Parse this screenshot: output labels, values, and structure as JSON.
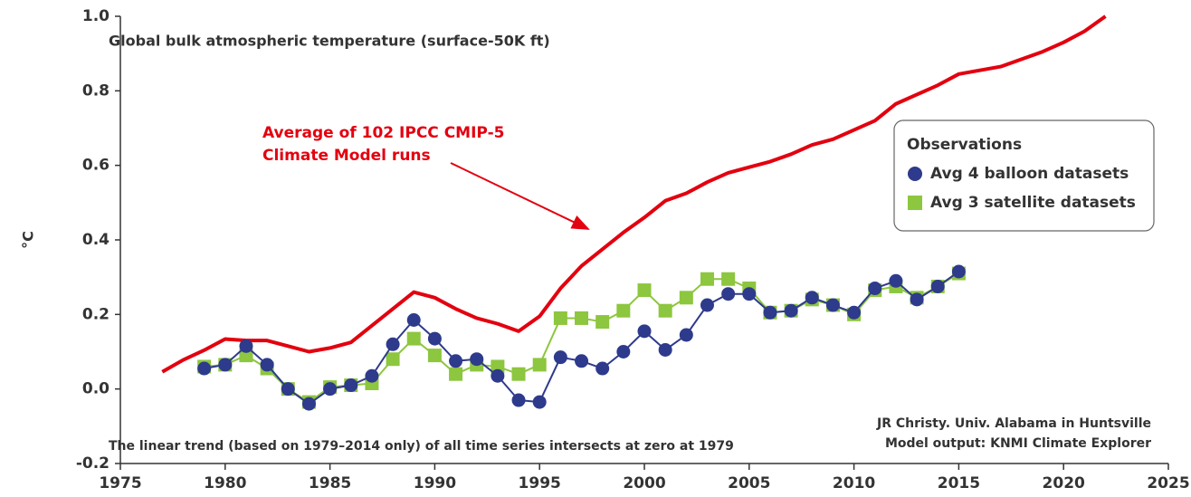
{
  "chart_data": {
    "type": "line",
    "title": "Global bulk atmospheric temperature (surface-50K ft)",
    "ylabel": "°C",
    "annotation": [
      "Average of 102 IPCC CMIP-5",
      "Climate Model runs"
    ],
    "legend_title": "Observations",
    "notes": [
      "The linear trend (based on 1979–2014 only) of all time series intersects at zero at 1979",
      "JR Christy. Univ. Alabama in Huntsville",
      "Model output: KNMI Climate Explorer"
    ],
    "xlim": [
      1975,
      2025
    ],
    "xticks": [
      1975,
      1980,
      1985,
      1990,
      1995,
      2000,
      2005,
      2010,
      2015,
      2020,
      2025
    ],
    "ylim": [
      -0.2,
      1.0
    ],
    "yticks": [
      {
        "value": -0.2,
        "label": "-0.2"
      },
      {
        "value": 0,
        "label": "0.0"
      },
      {
        "value": 0.2,
        "label": "0.2"
      },
      {
        "value": 0.4,
        "label": "0.4"
      },
      {
        "value": 0.6,
        "label": "0.6"
      },
      {
        "value": 0.8,
        "label": "0.8"
      },
      {
        "value": 1.0,
        "label": "1.0"
      }
    ],
    "series": [
      {
        "name": "Average of 102 IPCC CMIP-5 Climate Model runs",
        "color": "#e3000f",
        "marker": "none",
        "x": [
          1977,
          1978,
          1979,
          1980,
          1981,
          1982,
          1983,
          1984,
          1985,
          1986,
          1987,
          1988,
          1989,
          1990,
          1991,
          1992,
          1993,
          1994,
          1995,
          1996,
          1997,
          1998,
          1999,
          2000,
          2001,
          2002,
          2003,
          2004,
          2005,
          2006,
          2007,
          2008,
          2009,
          2010,
          2011,
          2012,
          2013,
          2014,
          2015,
          2016,
          2017,
          2018,
          2019,
          2020,
          2021,
          2022
        ],
        "values": [
          0.046,
          0.078,
          0.104,
          0.134,
          0.13,
          0.13,
          0.115,
          0.1,
          0.11,
          0.125,
          0.17,
          0.215,
          0.26,
          0.245,
          0.215,
          0.19,
          0.175,
          0.155,
          0.195,
          0.27,
          0.33,
          0.375,
          0.42,
          0.46,
          0.505,
          0.525,
          0.555,
          0.58,
          0.595,
          0.61,
          0.63,
          0.655,
          0.67,
          0.695,
          0.72,
          0.765,
          0.79,
          0.815,
          0.845,
          0.855,
          0.865,
          0.885,
          0.905,
          0.93,
          0.96,
          1.0
        ]
      },
      {
        "name": "Avg 3 satellite datasets",
        "color": "#8dc63f",
        "marker": "square",
        "x": [
          1979,
          1980,
          1981,
          1982,
          1983,
          1984,
          1985,
          1986,
          1987,
          1988,
          1989,
          1990,
          1991,
          1992,
          1993,
          1994,
          1995,
          1996,
          1997,
          1998,
          1999,
          2000,
          2001,
          2002,
          2003,
          2004,
          2005,
          2006,
          2007,
          2008,
          2009,
          2010,
          2011,
          2012,
          2013,
          2014,
          2015
        ],
        "values": [
          0.06,
          0.065,
          0.09,
          0.055,
          0.0,
          -0.035,
          0.005,
          0.01,
          0.015,
          0.08,
          0.135,
          0.09,
          0.04,
          0.065,
          0.06,
          0.04,
          0.065,
          0.19,
          0.19,
          0.18,
          0.21,
          0.265,
          0.21,
          0.245,
          0.295,
          0.295,
          0.27,
          0.205,
          0.21,
          0.24,
          0.225,
          0.2,
          0.265,
          0.275,
          0.245,
          0.275,
          0.31
        ]
      },
      {
        "name": "Avg 4 balloon datasets",
        "color": "#2e3a8c",
        "marker": "circle",
        "x": [
          1979,
          1980,
          1981,
          1982,
          1983,
          1984,
          1985,
          1986,
          1987,
          1988,
          1989,
          1990,
          1991,
          1992,
          1993,
          1994,
          1995,
          1996,
          1997,
          1998,
          1999,
          2000,
          2001,
          2002,
          2003,
          2004,
          2005,
          2006,
          2007,
          2008,
          2009,
          2010,
          2011,
          2012,
          2013,
          2014,
          2015
        ],
        "values": [
          0.055,
          0.065,
          0.115,
          0.065,
          0.0,
          -0.04,
          0.0,
          0.01,
          0.035,
          0.12,
          0.185,
          0.135,
          0.075,
          0.08,
          0.035,
          -0.03,
          -0.035,
          0.085,
          0.075,
          0.055,
          0.1,
          0.155,
          0.105,
          0.145,
          0.225,
          0.255,
          0.255,
          0.205,
          0.21,
          0.245,
          0.225,
          0.205,
          0.27,
          0.29,
          0.24,
          0.275,
          0.315
        ]
      }
    ]
  }
}
